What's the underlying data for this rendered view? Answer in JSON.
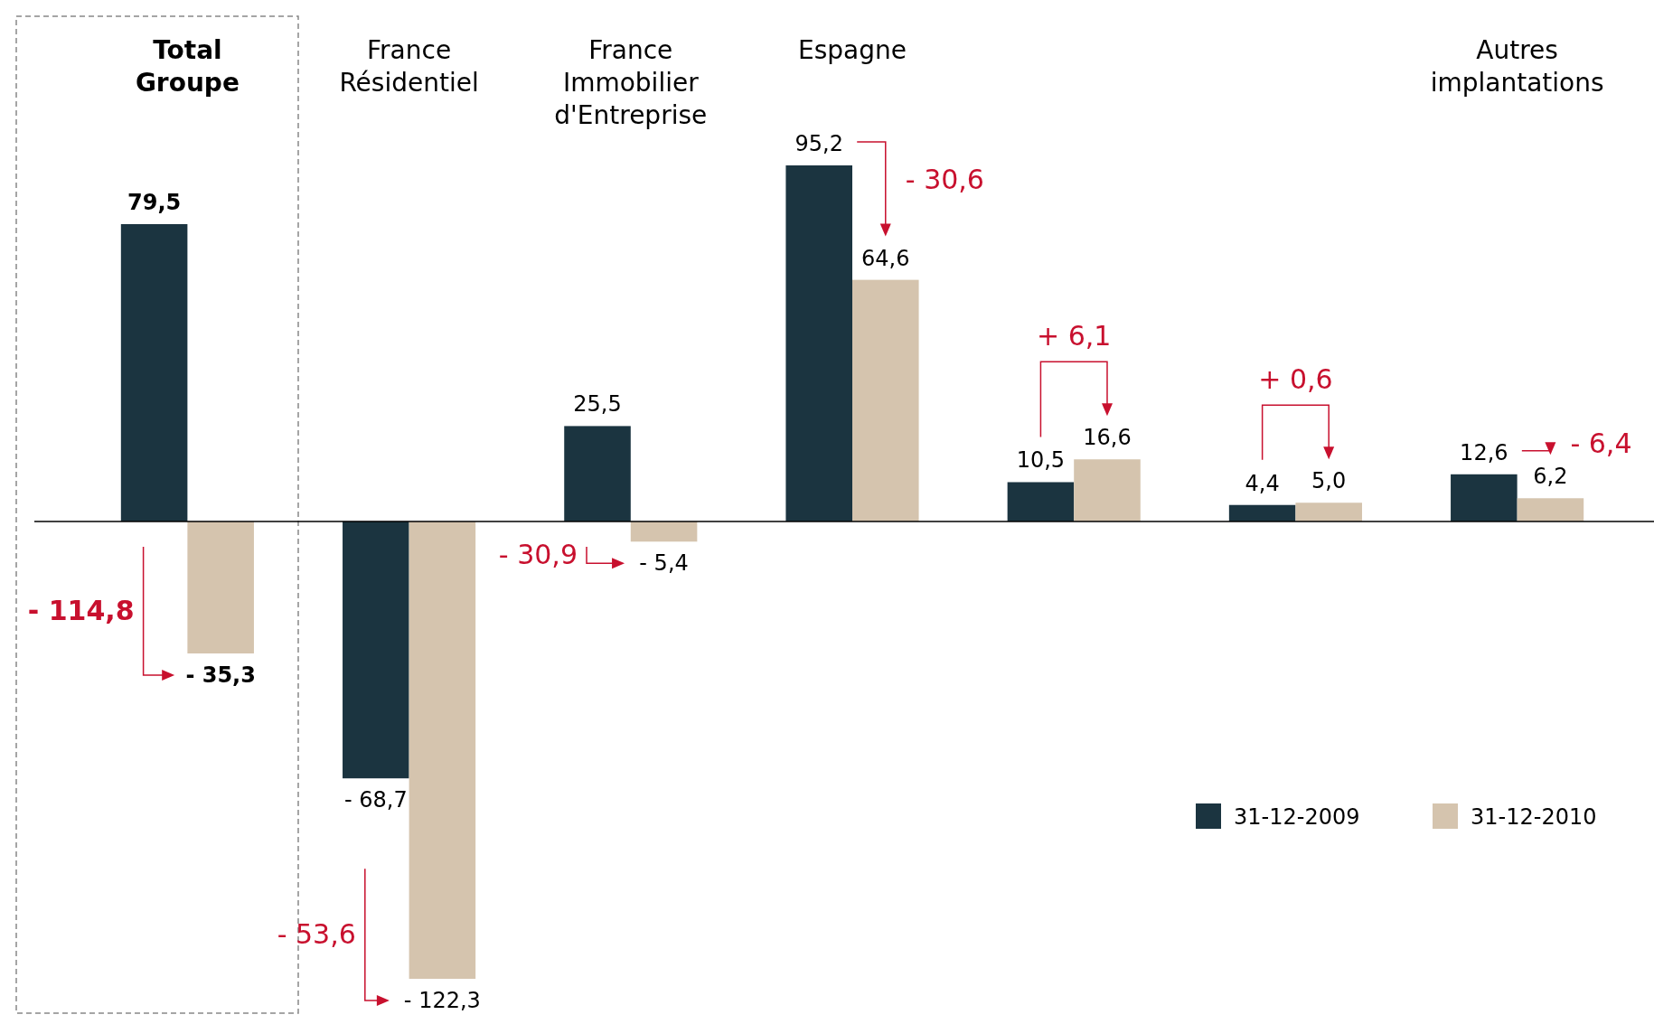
{
  "chart_data": {
    "type": "bar",
    "categories": [
      "Total Groupe",
      "France Résidentiel",
      "France Immobilier d'Entreprise",
      "Espagne",
      null,
      null,
      "Autres implantations"
    ],
    "series": [
      {
        "name": "31-12-2009",
        "color": "#1b3440",
        "values": [
          79.5,
          -68.7,
          25.5,
          95.2,
          10.5,
          4.4,
          12.6
        ],
        "value_labels": [
          "79,5",
          "- 68,7",
          "25,5",
          "95,2",
          "10,5",
          "4,4",
          "12,6"
        ]
      },
      {
        "name": "31-12-2010",
        "color": "#d5c4ae",
        "values": [
          -35.3,
          -122.3,
          -5.4,
          64.6,
          16.6,
          5.0,
          6.2
        ],
        "value_labels": [
          "- 35,3",
          "- 122,3",
          "- 5,4",
          "64,6",
          "16,6",
          "5,0",
          "6,2"
        ]
      }
    ],
    "annotations": [
      "- 114,8",
      "- 53,6",
      "- 30,9",
      "- 30,6",
      "+ 6,1",
      "+ 0,6",
      "- 6,4"
    ],
    "legend": "bottom right",
    "relative": false
  }
}
